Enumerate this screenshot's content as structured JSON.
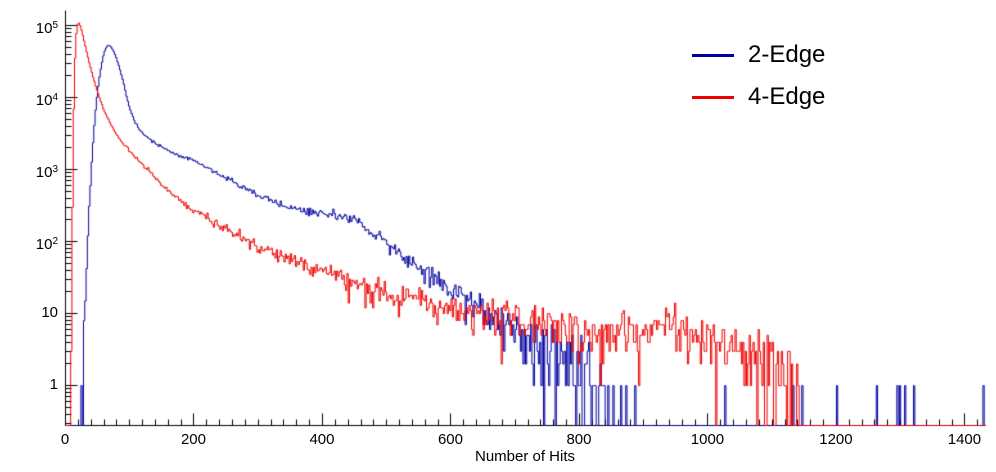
{
  "page": {
    "background": "#ffffff"
  },
  "chart_data": {
    "type": "line",
    "title": "",
    "xlabel": "Number of Hits",
    "ylabel": "",
    "x_scale": "linear",
    "y_scale": "log",
    "xlim": [
      0,
      1432
    ],
    "ylim": [
      0.28,
      161000
    ],
    "x_ticks": [
      0,
      200,
      400,
      600,
      800,
      1000,
      1200,
      1400
    ],
    "x_tick_labels": [
      "0",
      "200",
      "400",
      "600",
      "800",
      "1000",
      "1200",
      "1400"
    ],
    "x_minor_tick_step": 20,
    "y_ticks": [
      1,
      10,
      100,
      1000,
      10000,
      100000
    ],
    "y_tick_labels": [
      {
        "base": "1"
      },
      {
        "base": "10"
      },
      {
        "base": "10",
        "exp": "2"
      },
      {
        "base": "10",
        "exp": "3"
      },
      {
        "base": "10",
        "exp": "4"
      },
      {
        "base": "10",
        "exp": "5"
      }
    ],
    "grid": false,
    "legend_position": "top-right",
    "axis_color": "#000000",
    "series": [
      {
        "name": "2-Edge",
        "color": "#0000a0",
        "bin_width": 2,
        "envelope": [
          [
            24,
            0.3
          ],
          [
            28,
            3
          ],
          [
            32,
            30
          ],
          [
            36,
            200
          ],
          [
            40,
            900
          ],
          [
            44,
            3200
          ],
          [
            48,
            8500
          ],
          [
            52,
            17000
          ],
          [
            56,
            28000
          ],
          [
            60,
            42000
          ],
          [
            64,
            51000
          ],
          [
            68,
            53000
          ],
          [
            72,
            49000
          ],
          [
            78,
            38000
          ],
          [
            84,
            26000
          ],
          [
            90,
            16500
          ],
          [
            96,
            9500
          ],
          [
            102,
            6200
          ],
          [
            110,
            4300
          ],
          [
            120,
            3200
          ],
          [
            135,
            2500
          ],
          [
            150,
            2050
          ],
          [
            170,
            1650
          ],
          [
            200,
            1330
          ],
          [
            230,
            950
          ],
          [
            260,
            680
          ],
          [
            300,
            450
          ],
          [
            340,
            310
          ],
          [
            380,
            250
          ],
          [
            410,
            235
          ],
          [
            440,
            215
          ],
          [
            460,
            175
          ],
          [
            480,
            130
          ],
          [
            500,
            92
          ],
          [
            520,
            66
          ],
          [
            540,
            50
          ],
          [
            560,
            38
          ],
          [
            590,
            25
          ],
          [
            620,
            16
          ],
          [
            650,
            11
          ],
          [
            680,
            7.2
          ],
          [
            710,
            4.8
          ],
          [
            740,
            3.2
          ],
          [
            770,
            2.2
          ],
          [
            800,
            1.6
          ],
          [
            830,
            1.0
          ],
          [
            850,
            0.5
          ],
          [
            870,
            0.12
          ],
          [
            900,
            0.02
          ],
          [
            1432,
            0.015
          ]
        ],
        "spikes": [
          [
            1146,
            1
          ],
          [
            1200,
            1
          ],
          [
            1262,
            1
          ],
          [
            1306,
            1
          ],
          [
            1320,
            1
          ],
          [
            1428,
            1
          ]
        ]
      },
      {
        "name": "4-Edge",
        "color": "#ee0000",
        "bin_width": 2,
        "envelope": [
          [
            8,
            0.3
          ],
          [
            10,
            40
          ],
          [
            12,
            2500
          ],
          [
            14,
            20000
          ],
          [
            16,
            62000
          ],
          [
            18,
            96000
          ],
          [
            20,
            112000
          ],
          [
            23,
            99000
          ],
          [
            26,
            80000
          ],
          [
            30,
            56000
          ],
          [
            35,
            36000
          ],
          [
            40,
            24000
          ],
          [
            46,
            15500
          ],
          [
            52,
            10500
          ],
          [
            60,
            6600
          ],
          [
            70,
            4300
          ],
          [
            80,
            2950
          ],
          [
            90,
            2250
          ],
          [
            100,
            1850
          ],
          [
            115,
            1300
          ],
          [
            130,
            950
          ],
          [
            150,
            620
          ],
          [
            170,
            430
          ],
          [
            200,
            270
          ],
          [
            230,
            190
          ],
          [
            260,
            132
          ],
          [
            300,
            88
          ],
          [
            340,
            60
          ],
          [
            380,
            44
          ],
          [
            420,
            33
          ],
          [
            460,
            25
          ],
          [
            500,
            20
          ],
          [
            540,
            16
          ],
          [
            580,
            12.8
          ],
          [
            620,
            10.5
          ],
          [
            660,
            9.2
          ],
          [
            700,
            8.0
          ],
          [
            750,
            6.6
          ],
          [
            800,
            5.8
          ],
          [
            840,
            5.4
          ],
          [
            870,
            6.4
          ],
          [
            910,
            6.0
          ],
          [
            950,
            6.4
          ],
          [
            990,
            5.2
          ],
          [
            1020,
            4.4
          ],
          [
            1050,
            3.6
          ],
          [
            1080,
            2.8
          ],
          [
            1105,
            2.2
          ],
          [
            1125,
            1.4
          ],
          [
            1142,
            0.6
          ],
          [
            1160,
            0.001
          ],
          [
            1432,
            0.0005
          ]
        ],
        "spikes": []
      }
    ]
  }
}
